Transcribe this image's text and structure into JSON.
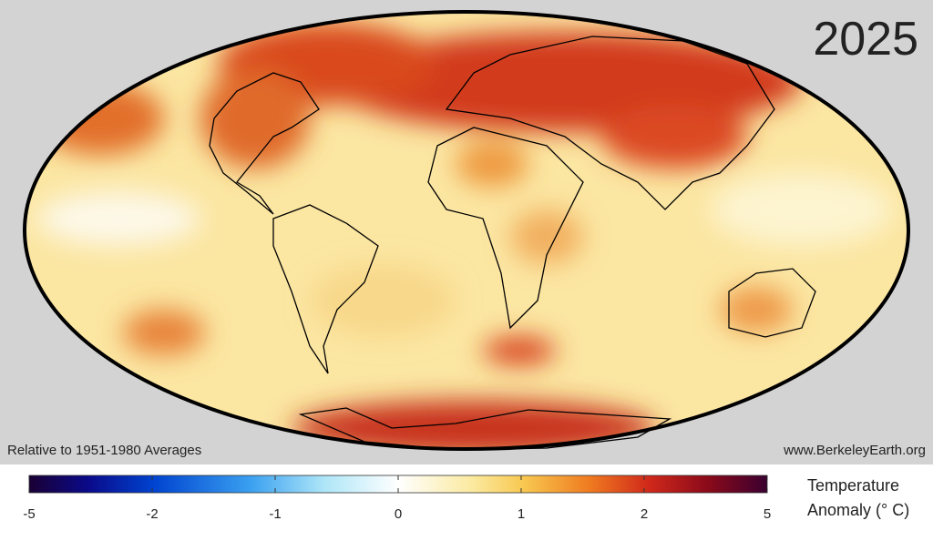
{
  "header": {
    "year": "2025"
  },
  "footer": {
    "baseline": "Relative to 1951-1980 Averages",
    "source": "www.BerkeleyEarth.org"
  },
  "colorbar": {
    "label": [
      "Temperature",
      "Anomaly  (° C)"
    ],
    "ticks": [
      -5,
      -2,
      -1,
      0,
      1,
      2,
      5
    ]
  }
}
